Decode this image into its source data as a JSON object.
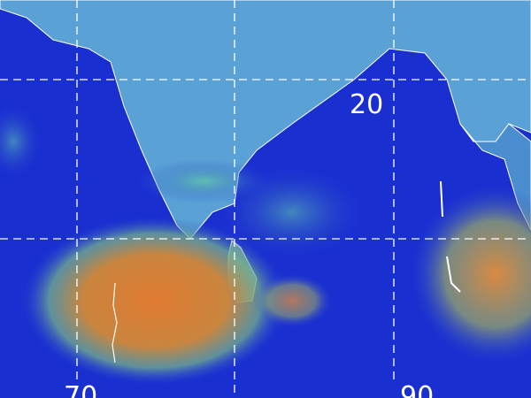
{
  "image": {
    "kind": "satellite-infrared-composite",
    "colors": {
      "ocean": "#1a2fd0",
      "land": "#5fa6d8",
      "cloud_high": "#d9803a",
      "cloud_mid": "#4fb3a8",
      "grid": "#ffffff"
    }
  },
  "grid_labels": {
    "lat_20": "20",
    "lon_70": "70",
    "lon_90": "90"
  }
}
